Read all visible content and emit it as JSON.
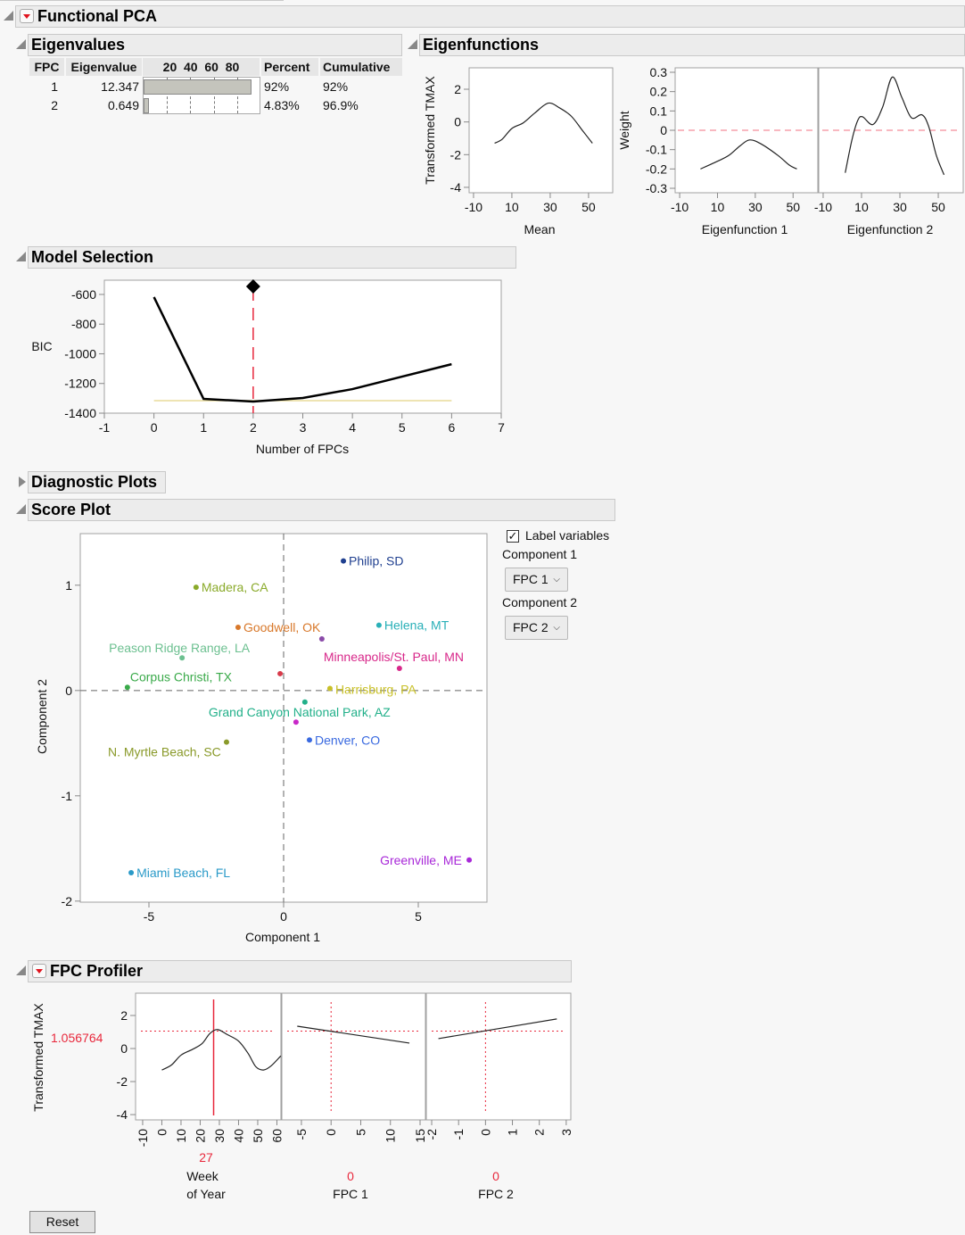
{
  "report": {
    "title": "Functional PCA",
    "sections": {
      "eigenvalues": "Eigenvalues",
      "eigenfunctions": "Eigenfunctions",
      "model_selection": "Model Selection",
      "diagnostic_plots": "Diagnostic Plots",
      "score_plot": "Score Plot",
      "fpc_profiler": "FPC Profiler"
    }
  },
  "eigen_table": {
    "headers": [
      "FPC",
      "Eigenvalue",
      "20  40  60  80",
      "Percent",
      "Cumulative"
    ],
    "bar_ticks": [
      20,
      40,
      60,
      80
    ],
    "rows": [
      {
        "fpc": "1",
        "eigenvalue": "12.347",
        "percent_value": 92,
        "percent": "92%",
        "cumulative": "92%"
      },
      {
        "fpc": "2",
        "eigenvalue": "0.649",
        "percent_value": 4.83,
        "percent": "4.83%",
        "cumulative": "96.9%"
      }
    ]
  },
  "score_controls": {
    "label_variables": "Label variables",
    "label_variables_checked": true,
    "component1_label": "Component 1",
    "component1_value": "FPC 1",
    "component2_label": "Component 2",
    "component2_value": "FPC 2"
  },
  "profiler": {
    "response_label": "Transformed TMAX",
    "response_value": "1.056764",
    "factors": [
      {
        "value": "27",
        "label_line1": "Week",
        "label_line2": "of Year"
      },
      {
        "value": "0",
        "label_line1": "",
        "label_line2": "FPC 1"
      },
      {
        "value": "0",
        "label_line1": "",
        "label_line2": "FPC 2"
      }
    ],
    "reset_label": "Reset"
  },
  "colors": {
    "accent_red": "#e8283c",
    "zero_line": "#f07080",
    "ref_yellow": "#e8dc9a"
  },
  "chart_data": [
    {
      "id": "mean",
      "type": "line",
      "xlabel": "Mean",
      "ylabel": "Transformed TMAX",
      "xlim": [
        -12.3,
        62.6
      ],
      "ylim": [
        -4.33,
        3.31
      ],
      "xticks": [
        -10,
        10,
        30,
        50
      ],
      "yticks": [
        2,
        0,
        -2,
        -4
      ],
      "x": [
        1,
        5,
        10,
        16,
        22,
        29,
        35,
        41,
        47,
        52
      ],
      "y": [
        -1.3,
        -1.05,
        -0.4,
        -0.05,
        0.55,
        1.15,
        0.85,
        0.35,
        -0.55,
        -1.3
      ]
    },
    {
      "id": "ef1",
      "type": "line",
      "xlabel": "Eigenfunction 1",
      "ylabel": "Weight",
      "xlim": [
        -12.4,
        63.1
      ],
      "ylim": [
        -0.323,
        0.323
      ],
      "xticks": [
        -10,
        10,
        30,
        50
      ],
      "yticks": [
        0.3,
        0.2,
        0.1,
        0,
        -0.1,
        -0.2,
        -0.3
      ],
      "x": [
        1,
        10,
        16,
        22,
        27,
        33,
        42,
        48,
        52
      ],
      "y": [
        -0.2,
        -0.16,
        -0.13,
        -0.08,
        -0.05,
        -0.07,
        -0.13,
        -0.18,
        -0.2
      ]
    },
    {
      "id": "ef2",
      "type": "line",
      "xlabel": "Eigenfunction 2",
      "xlim": [
        -12.3,
        63.0
      ],
      "ylim": [
        -0.323,
        0.323
      ],
      "xticks": [
        -10,
        10,
        30,
        50
      ],
      "yticks": [],
      "x": [
        1.5,
        5,
        8,
        10.5,
        16,
        21,
        26,
        31,
        36,
        41.5,
        45,
        49,
        53
      ],
      "y": [
        -0.22,
        -0.05,
        0.05,
        0.07,
        0.03,
        0.12,
        0.275,
        0.17,
        0.065,
        0.08,
        0.02,
        -0.13,
        -0.23
      ]
    },
    {
      "id": "bic",
      "type": "line",
      "xlabel": "Number of FPCs",
      "ylabel": "BIC",
      "xlim": [
        -1,
        7
      ],
      "ylim": [
        -1400,
        -504
      ],
      "xticks": [
        -1,
        0,
        1,
        2,
        3,
        4,
        5,
        6,
        7
      ],
      "yticks": [
        -600,
        -800,
        -1000,
        -1200,
        -1400
      ],
      "x": [
        0,
        1,
        2,
        3,
        4,
        5,
        6
      ],
      "y": [
        -618,
        -1304,
        -1322,
        -1298,
        -1238,
        -1154,
        -1070
      ],
      "selected_fpcs": 2,
      "reference_line": -1316
    },
    {
      "id": "score",
      "type": "scatter",
      "xlabel": "Component 1",
      "ylabel": "Component 2",
      "xlim": [
        -7.55,
        7.55
      ],
      "ylim": [
        -2.01,
        1.49
      ],
      "xticks": [
        -5,
        0,
        5
      ],
      "yticks": [
        1,
        0,
        -1,
        -2
      ],
      "points": [
        {
          "label": "Philip, SD",
          "x": 2.22,
          "y": 1.23,
          "color": "#1f3f8f"
        },
        {
          "label": "Madera, CA",
          "x": -3.25,
          "y": 0.98,
          "color": "#8aaa2a"
        },
        {
          "label": "Goodwell, OK",
          "x": -1.69,
          "y": 0.6,
          "color": "#d8782a"
        },
        {
          "label": "",
          "x": 1.42,
          "y": 0.49,
          "color": "#8a4aa8"
        },
        {
          "label": "Helena, MT",
          "x": 3.54,
          "y": 0.62,
          "color": "#2ab0b8"
        },
        {
          "label": "Peason Ridge Range, LA",
          "x": -3.77,
          "y": 0.31,
          "color": "#6cc090"
        },
        {
          "label": "Minneapolis/St. Paul, MN",
          "x": 4.3,
          "y": 0.21,
          "color": "#d8288a"
        },
        {
          "label": "",
          "x": -0.13,
          "y": 0.16,
          "color": "#d83a4a"
        },
        {
          "label": "Corpus Christi, TX",
          "x": -5.8,
          "y": 0.03,
          "color": "#3aaa4a"
        },
        {
          "label": "Harrisburg, PA",
          "x": 1.72,
          "y": 0.02,
          "color": "#c8c028"
        },
        {
          "label": "Grand Canyon National Park, AZ",
          "x": 0.79,
          "y": -0.11,
          "color": "#22b08a"
        },
        {
          "label": "",
          "x": 0.46,
          "y": -0.3,
          "color": "#c828c8"
        },
        {
          "label": "Denver, CO",
          "x": 0.96,
          "y": -0.47,
          "color": "#3a6ae0"
        },
        {
          "label": "N. Myrtle Beach, SC",
          "x": -2.12,
          "y": -0.49,
          "color": "#8a9a2a"
        },
        {
          "label": "Miami Beach, FL",
          "x": -5.66,
          "y": -1.73,
          "color": "#2a9ac8"
        },
        {
          "label": "Greenville, ME",
          "x": 6.89,
          "y": -1.61,
          "color": "#a828d8"
        }
      ]
    },
    {
      "id": "prof_week",
      "type": "line",
      "ylabel": "Transformed TMAX",
      "xlim": [
        -13.7,
        62.1
      ],
      "ylim": [
        -4.32,
        3.35
      ],
      "xticks": [
        -10,
        0,
        10,
        20,
        30,
        40,
        50,
        60
      ],
      "yticks": [
        2,
        0,
        -2,
        -4
      ],
      "x": [
        0,
        5,
        10,
        16,
        21,
        25,
        29,
        34,
        40,
        45,
        49,
        53,
        57,
        62
      ],
      "y": [
        -1.3,
        -1.0,
        -0.4,
        -0.05,
        0.3,
        0.9,
        1.15,
        0.85,
        0.45,
        -0.3,
        -1.1,
        -1.3,
        -1.05,
        -0.45
      ],
      "current_x": 27,
      "current_y": 1.056764
    },
    {
      "id": "prof_fpc1",
      "type": "line",
      "xlim": [
        -8.3,
        15.9
      ],
      "ylim": [
        -4.32,
        3.35
      ],
      "xticks": [
        -5,
        0,
        5,
        10,
        15
      ],
      "x": [
        -5.7,
        13.2
      ],
      "y": [
        1.35,
        0.33
      ],
      "current_x": 0,
      "current_y": 1.056764
    },
    {
      "id": "prof_fpc2",
      "type": "line",
      "xlim": [
        -2.2,
        3.17
      ],
      "ylim": [
        -4.32,
        3.35
      ],
      "xticks": [
        -2,
        -1,
        0,
        1,
        2,
        3
      ],
      "x": [
        -1.75,
        2.65
      ],
      "y": [
        0.6,
        1.79
      ],
      "current_x": 0,
      "current_y": 1.056764
    }
  ]
}
